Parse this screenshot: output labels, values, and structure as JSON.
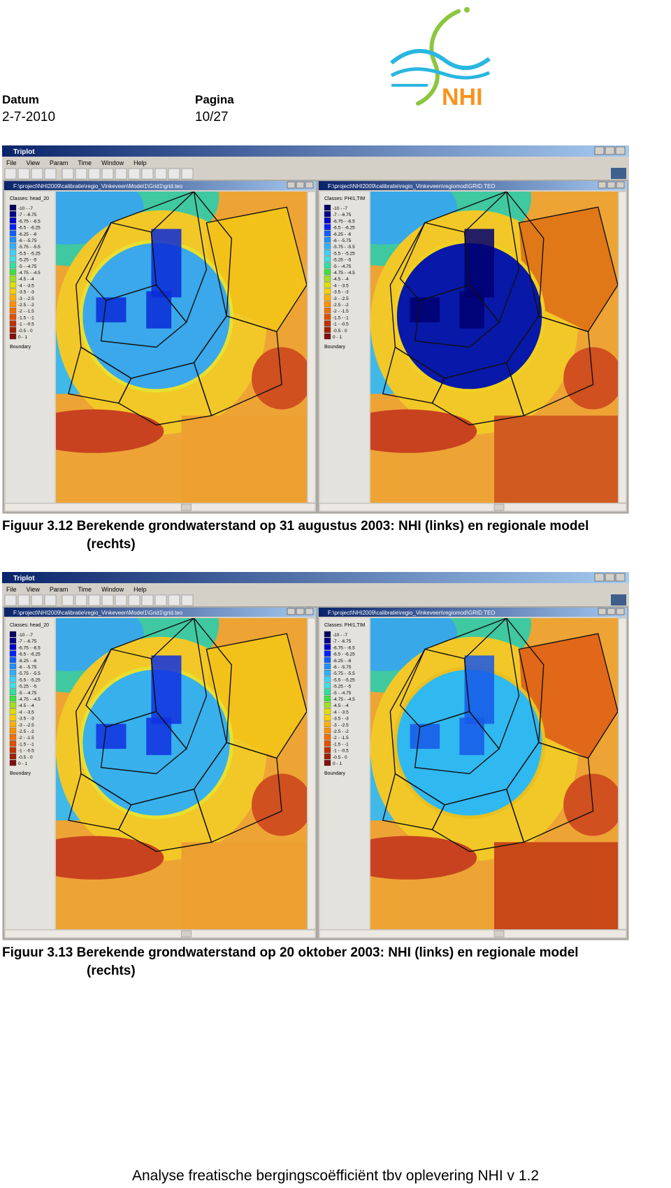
{
  "header": {
    "date_label": "Datum",
    "date": "2-7-2010",
    "page_label": "Pagina",
    "page": "10/27",
    "logo_text": "NHI"
  },
  "app": {
    "title": "Triplot",
    "menu": [
      "File",
      "View",
      "Param",
      "Time",
      "Window",
      "Help"
    ]
  },
  "legend": {
    "boundary": "Boundary",
    "classes": [
      {
        "label": "-10 - -7",
        "color": "#000060"
      },
      {
        "label": "-7 - -6.75",
        "color": "#00008b"
      },
      {
        "label": "-6.75 - -6.5",
        "color": "#0000cd"
      },
      {
        "label": "-6.5 - -6.25",
        "color": "#0020ff"
      },
      {
        "label": "-6.25 - -6",
        "color": "#1060ff"
      },
      {
        "label": "-6 - -5.75",
        "color": "#2090ff"
      },
      {
        "label": "-5.75 - -5.5",
        "color": "#30b0ff"
      },
      {
        "label": "-5.5 - -5.25",
        "color": "#40d0ff"
      },
      {
        "label": "-5.25 - -5",
        "color": "#40e0e0"
      },
      {
        "label": "-5 - -4.75",
        "color": "#30e0a0"
      },
      {
        "label": "-4.75 - -4.5",
        "color": "#40e040"
      },
      {
        "label": "-4.5 - -4",
        "color": "#a0e020"
      },
      {
        "label": "-4 - -3.5",
        "color": "#e0e000"
      },
      {
        "label": "-3.5 - -3",
        "color": "#ffd000"
      },
      {
        "label": "-3 - -2.5",
        "color": "#ffb000"
      },
      {
        "label": "-2.5 - -2",
        "color": "#ff9000"
      },
      {
        "label": "-2 - -1.5",
        "color": "#f07000"
      },
      {
        "label": "-1.5 - -1",
        "color": "#e05000"
      },
      {
        "label": "-1 - -0.5",
        "color": "#c03000"
      },
      {
        "label": "-0.5 - 0",
        "color": "#a02000"
      },
      {
        "label": "0 - 1",
        "color": "#801010"
      }
    ]
  },
  "figures": [
    {
      "caption": "Figuur 3.12 Berekende grondwaterstand op 31 augustus 2003: NHI (links) en regionale model",
      "caption_cont": "(rechts)",
      "windows": [
        {
          "title": "F:\\project\\NHI2009\\calibratie\\regio_Vinkeveen\\Model1\\Grid1\\grid.teo",
          "classes_label": "Classes: head_20"
        },
        {
          "title": "F:\\project\\NHI2009\\calibratie\\regio_Vinkeveen\\regiomod\\GRID.TEO",
          "classes_label": "Classes: PHI1,TIM"
        }
      ]
    },
    {
      "caption": "Figuur 3.13 Berekende grondwaterstand op 20 oktober 2003: NHI (links) en regionale model",
      "caption_cont": "(rechts)",
      "windows": [
        {
          "title": "F:\\project\\NHI2009\\calibratie\\regio_Vinkeveen\\Model1\\Grid1\\grid.teo",
          "classes_label": "Classes: head_20"
        },
        {
          "title": "F:\\project\\NHI2009\\calibratie\\regio_Vinkeveen\\regiomod\\GRID.TEO",
          "classes_label": "Classes: PHI1,TIM"
        }
      ]
    }
  ],
  "footer": "Analyse freatische bergingscoëfficiënt tbv oplevering NHI v 1.2"
}
